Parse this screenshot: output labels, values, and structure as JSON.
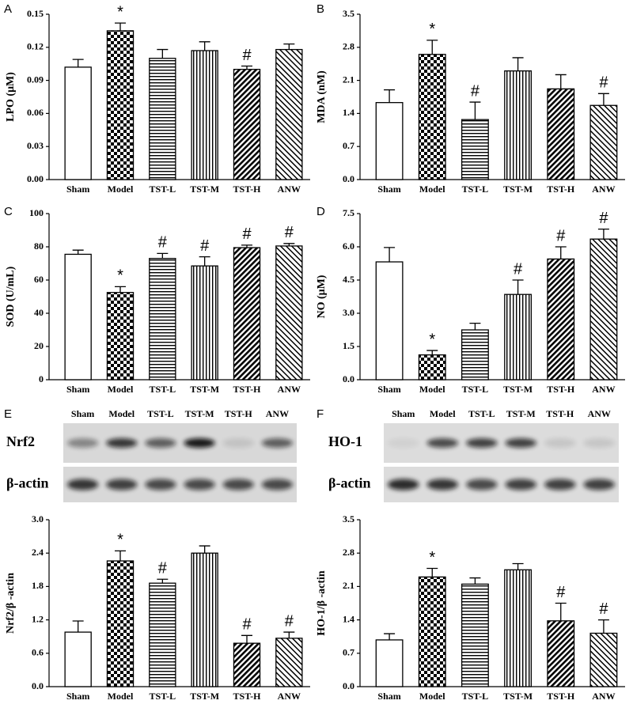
{
  "bar_patterns": [
    "none",
    "checker",
    "horizontal",
    "vertical",
    "diag-dense",
    "diag"
  ],
  "chart_data": [
    {
      "type": "bar",
      "panel": "A",
      "y_label": "LPO (μM)",
      "categories": [
        "Sham",
        "Model",
        "TST-L",
        "TST-M",
        "TST-H",
        "ANW"
      ],
      "values": [
        0.102,
        0.135,
        0.11,
        0.117,
        0.1,
        0.118
      ],
      "errors": [
        0.007,
        0.007,
        0.008,
        0.008,
        0.003,
        0.005
      ],
      "annotations": [
        null,
        "*",
        null,
        null,
        "#",
        null
      ],
      "color": "#000000",
      "ylim": [
        0,
        0.15
      ],
      "yticks": [
        {
          "value": 0,
          "label": "0.00"
        },
        0.03,
        0.06,
        0.09,
        0.12,
        0.15
      ]
    },
    {
      "type": "bar",
      "panel": "B",
      "y_label": "MDA (nM)",
      "categories": [
        "Sham",
        "Model",
        "TST-L",
        "TST-M",
        "TST-H",
        "ANW"
      ],
      "values": [
        1.63,
        2.65,
        1.27,
        2.3,
        1.92,
        1.57
      ],
      "errors": [
        0.27,
        0.3,
        0.37,
        0.28,
        0.3,
        0.25
      ],
      "annotations": [
        null,
        "*",
        "#",
        null,
        null,
        "#"
      ],
      "color": "#000000",
      "ylim": [
        0,
        3.5
      ],
      "yticks": [
        {
          "value": 0,
          "label": "0.0"
        },
        0.7,
        1.4,
        2.1,
        2.8,
        3.5
      ]
    },
    {
      "type": "bar",
      "panel": "C",
      "y_label": "SOD (U/mL)",
      "categories": [
        "Sham",
        "Model",
        "TST-L",
        "TST-M",
        "TST-H",
        "ANW"
      ],
      "values": [
        75.5,
        52.5,
        73,
        68.5,
        79.5,
        80.5
      ],
      "errors": [
        2.5,
        3.5,
        3,
        5.5,
        1.5,
        1.5
      ],
      "annotations": [
        null,
        "*",
        "#",
        "#",
        "#",
        "#"
      ],
      "color": "#000000",
      "ylim": [
        0,
        100
      ],
      "yticks": [
        0,
        20,
        40,
        60,
        80,
        100
      ]
    },
    {
      "type": "bar",
      "panel": "D",
      "y_label": "NO (μM)",
      "categories": [
        "Sham",
        "Model",
        "TST-L",
        "TST-M",
        "TST-H",
        "ANW"
      ],
      "values": [
        5.32,
        1.12,
        2.25,
        3.85,
        5.45,
        6.35
      ],
      "errors": [
        0.65,
        0.2,
        0.3,
        0.65,
        0.55,
        0.45
      ],
      "annotations": [
        null,
        "*",
        null,
        "#",
        "#",
        "#"
      ],
      "color": "#000000",
      "ylim": [
        0,
        7.5
      ],
      "yticks": [
        {
          "value": 0,
          "label": "0.0"
        },
        1.5,
        {
          "value": 3,
          "label": "3.0"
        },
        4.5,
        {
          "value": 6,
          "label": "6.0"
        },
        7.5
      ]
    },
    {
      "type": "bar",
      "y_label": "Nrf2/β -actin",
      "categories": [
        "Sham",
        "Model",
        "TST-L",
        "TST-M",
        "TST-H",
        "ANW"
      ],
      "values": [
        0.98,
        2.26,
        1.86,
        2.4,
        0.78,
        0.87
      ],
      "errors": [
        0.2,
        0.18,
        0.07,
        0.13,
        0.14,
        0.11
      ],
      "annotations": [
        null,
        "*",
        "#",
        null,
        "#",
        "#"
      ],
      "color": "#000000",
      "ylim": [
        0,
        3
      ],
      "yticks": [
        {
          "value": 0,
          "label": "0.0"
        },
        0.6,
        1.2,
        1.8,
        2.4,
        {
          "value": 3,
          "label": "3.0"
        }
      ]
    },
    {
      "type": "bar",
      "y_label": "HO-1/β -actin",
      "categories": [
        "Sham",
        "Model",
        "TST-L",
        "TST-M",
        "TST-H",
        "ANW"
      ],
      "values": [
        0.98,
        2.3,
        2.15,
        2.45,
        1.38,
        1.12
      ],
      "errors": [
        0.13,
        0.18,
        0.13,
        0.13,
        0.37,
        0.28
      ],
      "annotations": [
        null,
        "*",
        null,
        null,
        "#",
        "#"
      ],
      "color": "#000000",
      "ylim": [
        0,
        3.5
      ],
      "yticks": [
        {
          "value": 0,
          "label": "0.0"
        },
        0.7,
        1.4,
        2.1,
        2.8,
        3.5
      ]
    }
  ],
  "blots": [
    {
      "panel": "E",
      "lanes": [
        "Sham",
        "Model",
        "TST-L",
        "TST-M",
        "TST-H",
        "ANW"
      ],
      "rows": [
        "Nrf2",
        "β-actin"
      ]
    },
    {
      "panel": "F",
      "lanes": [
        "Sham",
        "Model",
        "TST-L",
        "TST-M",
        "TST-H",
        "ANW"
      ],
      "rows": [
        "HO-1",
        "β-actin"
      ]
    }
  ]
}
